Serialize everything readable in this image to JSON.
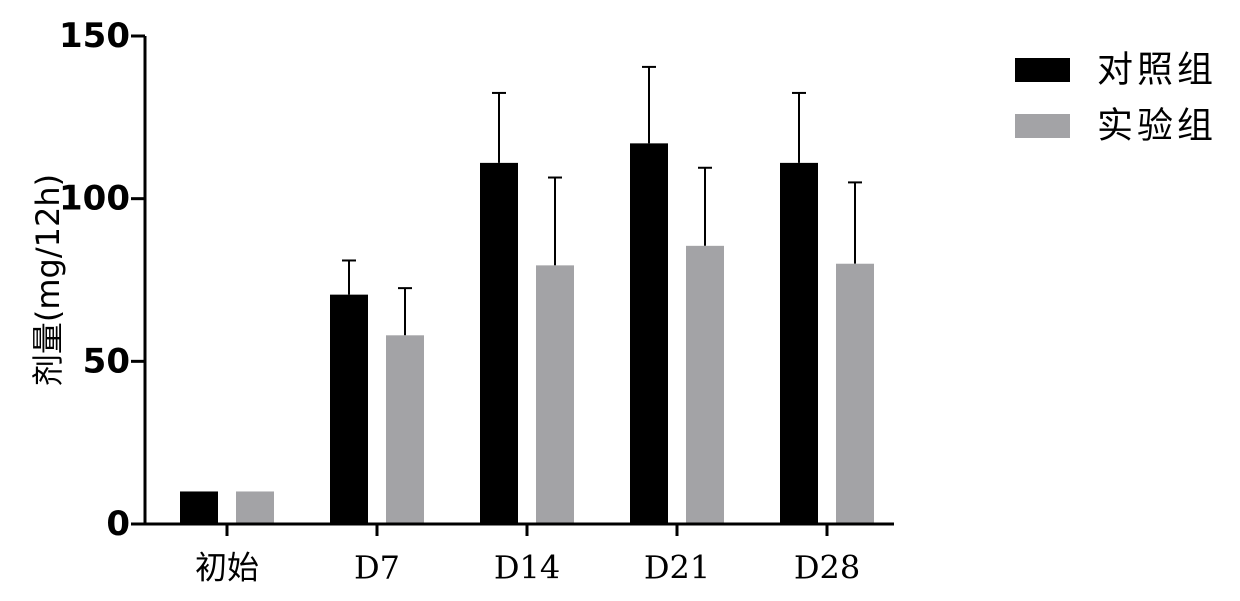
{
  "chart_data": {
    "type": "bar",
    "ylabel": "剂量(mg/12h)",
    "ylim": [
      0,
      150
    ],
    "yticks": [
      0,
      50,
      100,
      150
    ],
    "categories": [
      "初始",
      "D7",
      "D14",
      "D21",
      "D28"
    ],
    "series": [
      {
        "name": "对照组",
        "color": "#000000",
        "values": [
          10,
          70.5,
          111,
          117,
          111
        ],
        "errors": [
          0,
          10.5,
          21.5,
          23.5,
          21.5
        ]
      },
      {
        "name": "实验组",
        "color": "#a3a3a6",
        "values": [
          10,
          58,
          79.5,
          85.5,
          80
        ],
        "errors": [
          0,
          14.5,
          27,
          24,
          25
        ]
      }
    ],
    "grid": false,
    "legend": "top-right",
    "error_bars": "upper"
  }
}
